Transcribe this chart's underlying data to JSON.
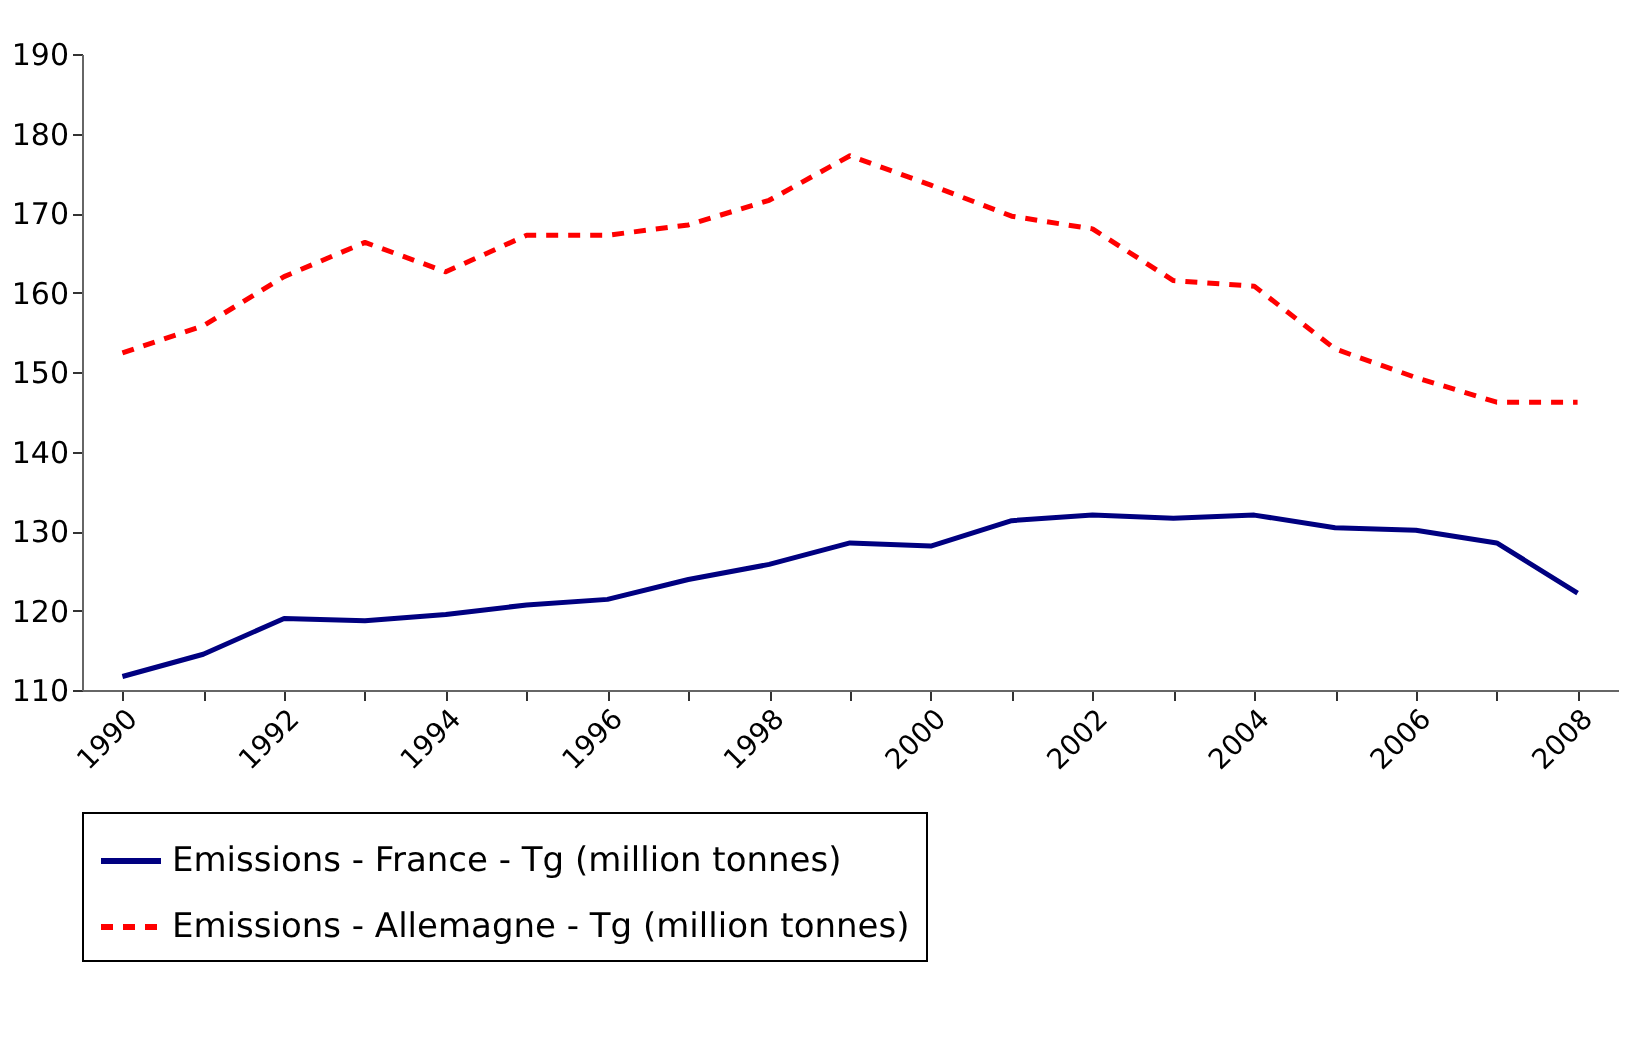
{
  "chart_data": {
    "type": "line",
    "categories": [
      "1990",
      null,
      "1992",
      null,
      "1994",
      null,
      "1996",
      null,
      "1998",
      null,
      "2000",
      null,
      "2002",
      null,
      "2004",
      null,
      "2006",
      null,
      "2008"
    ],
    "series": [
      {
        "name": "Emissions - France - Tg (million tonnes)",
        "color": "#000080",
        "line_style": "solid",
        "values": [
          111.7,
          114.5,
          119.0,
          118.7,
          119.5,
          120.7,
          121.4,
          123.9,
          125.8,
          128.5,
          128.1,
          131.3,
          132.0,
          131.6,
          132.0,
          130.4,
          130.1,
          128.5,
          122.2
        ]
      },
      {
        "name": "Emissions - Allemagne - Tg (million tonnes)",
        "color": "#ff0000",
        "line_style": "dashed",
        "values": [
          152.4,
          155.8,
          162.0,
          166.3,
          162.6,
          167.2,
          167.2,
          168.5,
          171.6,
          177.2,
          173.5,
          169.6,
          168.0,
          161.5,
          160.8,
          152.9,
          149.3,
          146.2,
          146.2
        ]
      }
    ],
    "ylim": [
      110,
      190
    ],
    "yticks": [
      110,
      120,
      130,
      140,
      150,
      160,
      170,
      180,
      190
    ],
    "grid": false,
    "legend": "bottom",
    "marker": "none"
  }
}
